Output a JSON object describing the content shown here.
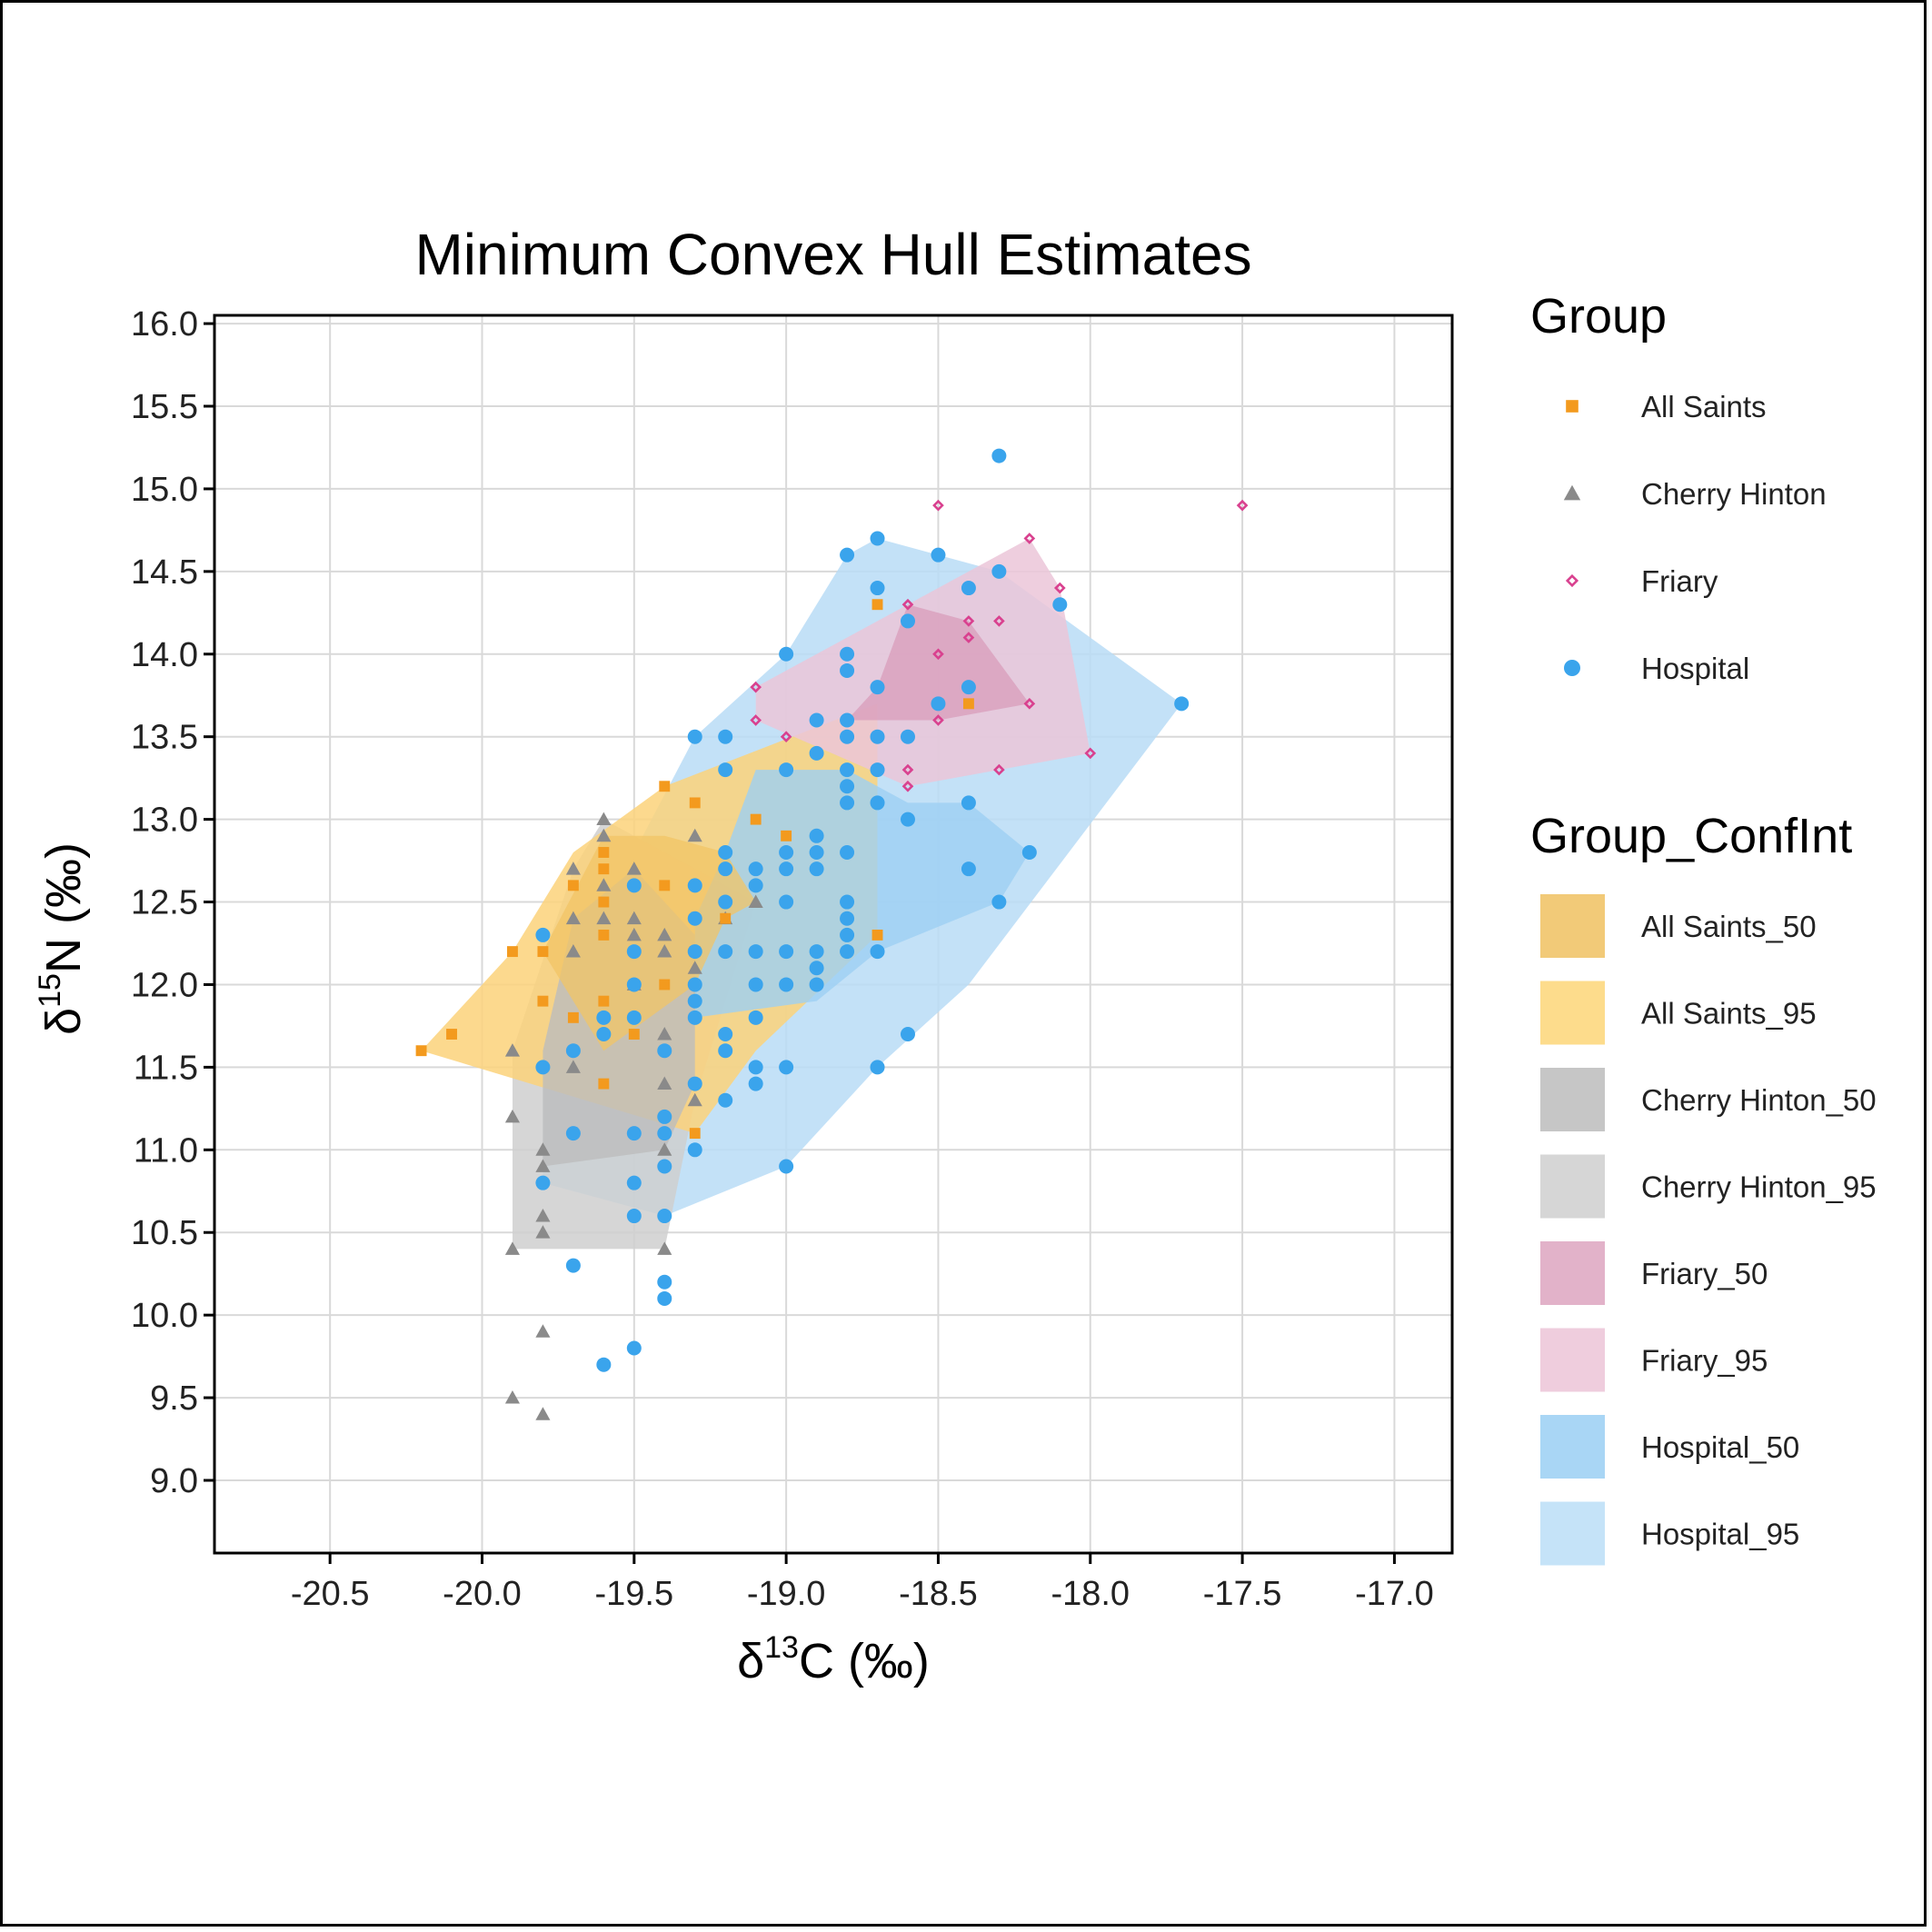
{
  "chart_data": {
    "type": "scatter",
    "title": "Minimum Convex Hull Estimates",
    "xlabel": {
      "prefix": "δ",
      "sup": "13",
      "suffix": "C (‰)"
    },
    "ylabel": {
      "prefix": "δ",
      "sup": "15",
      "suffix": "N (‰)"
    },
    "xlim": [
      -20.88,
      -16.81
    ],
    "ylim": [
      8.56,
      16.05
    ],
    "xticks": [
      -20.5,
      -20.0,
      -19.5,
      -19.0,
      -18.5,
      -18.0,
      -17.5,
      -17.0
    ],
    "xtick_labels": [
      "-20.5",
      "-20.0",
      "-19.5",
      "-19.0",
      "-18.5",
      "-18.0",
      "-17.5",
      "-17.0"
    ],
    "yticks": [
      9.0,
      9.5,
      10.0,
      10.5,
      11.0,
      11.5,
      12.0,
      12.5,
      13.0,
      13.5,
      14.0,
      14.5,
      15.0,
      15.5,
      16.0
    ],
    "ytick_labels": [
      "9.0",
      "9.5",
      "10.0",
      "10.5",
      "11.0",
      "11.5",
      "12.0",
      "12.5",
      "13.0",
      "13.5",
      "14.0",
      "14.5",
      "15.0",
      "15.5",
      "16.0"
    ],
    "grid": true,
    "legend_position": "right",
    "hulls": [
      {
        "name": "Hospital_95",
        "color": "#b9dcf6",
        "opacity": 0.85,
        "points": [
          [
            -18.7,
            14.7
          ],
          [
            -18.3,
            14.5
          ],
          [
            -17.7,
            13.7
          ],
          [
            -18.4,
            12.0
          ],
          [
            -18.7,
            11.5
          ],
          [
            -19.0,
            10.9
          ],
          [
            -19.4,
            10.6
          ],
          [
            -19.8,
            10.8
          ],
          [
            -19.8,
            11.5
          ],
          [
            -19.7,
            12.1
          ],
          [
            -19.3,
            13.5
          ],
          [
            -19.0,
            14.0
          ],
          [
            -18.8,
            14.6
          ]
        ]
      },
      {
        "name": "Cherry Hinton_95",
        "color": "#cfcfcf",
        "opacity": 0.85,
        "points": [
          [
            -19.9,
            10.4
          ],
          [
            -19.4,
            10.4
          ],
          [
            -19.3,
            11.3
          ],
          [
            -19.1,
            12.5
          ],
          [
            -19.6,
            13.0
          ],
          [
            -19.7,
            12.7
          ],
          [
            -19.9,
            11.6
          ]
        ]
      },
      {
        "name": "All Saints_95",
        "color": "#fcd27a",
        "opacity": 0.85,
        "points": [
          [
            -20.2,
            11.6
          ],
          [
            -19.3,
            11.1
          ],
          [
            -19.1,
            11.6
          ],
          [
            -18.7,
            12.3
          ],
          [
            -18.7,
            13.7
          ],
          [
            -19.4,
            13.2
          ],
          [
            -19.7,
            12.8
          ],
          [
            -19.9,
            12.2
          ]
        ]
      },
      {
        "name": "Friary_95",
        "color": "#ebc6d8",
        "opacity": 0.85,
        "points": [
          [
            -18.2,
            14.7
          ],
          [
            -18.1,
            14.4
          ],
          [
            -18.0,
            13.4
          ],
          [
            -18.6,
            13.2
          ],
          [
            -19.1,
            13.6
          ],
          [
            -19.1,
            13.8
          ],
          [
            -18.6,
            14.3
          ]
        ]
      },
      {
        "name": "Hospital_50",
        "color": "#9ecff3",
        "opacity": 0.8,
        "points": [
          [
            -18.2,
            12.8
          ],
          [
            -18.3,
            12.5
          ],
          [
            -18.7,
            12.2
          ],
          [
            -18.9,
            11.9
          ],
          [
            -19.3,
            11.8
          ],
          [
            -19.3,
            12.4
          ],
          [
            -19.2,
            12.8
          ],
          [
            -19.1,
            13.3
          ],
          [
            -18.8,
            13.3
          ],
          [
            -18.6,
            13.1
          ],
          [
            -18.4,
            13.1
          ]
        ]
      },
      {
        "name": "Cherry Hinton_50",
        "color": "#bdbdbd",
        "opacity": 0.8,
        "points": [
          [
            -19.8,
            10.9
          ],
          [
            -19.4,
            11.0
          ],
          [
            -19.3,
            11.4
          ],
          [
            -19.3,
            12.3
          ],
          [
            -19.5,
            12.7
          ],
          [
            -19.7,
            12.4
          ],
          [
            -19.8,
            11.6
          ]
        ]
      },
      {
        "name": "All Saints_50",
        "color": "#f2c465",
        "opacity": 0.75,
        "points": [
          [
            -19.8,
            12.2
          ],
          [
            -19.6,
            11.6
          ],
          [
            -19.3,
            12.0
          ],
          [
            -19.2,
            12.4
          ],
          [
            -19.1,
            12.5
          ],
          [
            -19.2,
            12.8
          ],
          [
            -19.4,
            12.9
          ],
          [
            -19.6,
            12.9
          ]
        ]
      },
      {
        "name": "Friary_50",
        "color": "#d99fbd",
        "opacity": 0.8,
        "points": [
          [
            -18.6,
            14.3
          ],
          [
            -18.4,
            14.2
          ],
          [
            -18.2,
            13.7
          ],
          [
            -18.5,
            13.6
          ],
          [
            -18.8,
            13.6
          ],
          [
            -18.7,
            13.8
          ]
        ]
      }
    ],
    "series": [
      {
        "name": "Cherry Hinton",
        "color": "#8a8a8a",
        "marker": "triangle",
        "points": [
          [
            -19.6,
            13.0
          ],
          [
            -19.6,
            12.9
          ],
          [
            -19.7,
            12.7
          ],
          [
            -19.5,
            12.7
          ],
          [
            -19.6,
            12.6
          ],
          [
            -19.7,
            12.4
          ],
          [
            -19.6,
            12.4
          ],
          [
            -19.5,
            12.4
          ],
          [
            -19.4,
            12.3
          ],
          [
            -19.5,
            12.3
          ],
          [
            -19.7,
            12.2
          ],
          [
            -19.4,
            12.2
          ],
          [
            -19.3,
            12.1
          ],
          [
            -19.5,
            12.0
          ],
          [
            -19.4,
            11.7
          ],
          [
            -19.9,
            11.6
          ],
          [
            -19.7,
            11.5
          ],
          [
            -19.4,
            11.4
          ],
          [
            -19.3,
            11.3
          ],
          [
            -19.9,
            11.2
          ],
          [
            -19.8,
            11.0
          ],
          [
            -19.4,
            11.0
          ],
          [
            -19.8,
            10.9
          ],
          [
            -19.8,
            10.6
          ],
          [
            -19.8,
            10.5
          ],
          [
            -19.9,
            10.4
          ],
          [
            -19.4,
            10.4
          ],
          [
            -19.8,
            9.9
          ],
          [
            -19.9,
            9.5
          ],
          [
            -19.8,
            9.4
          ],
          [
            -19.3,
            12.9
          ],
          [
            -19.1,
            12.5
          ],
          [
            -19.2,
            12.4
          ]
        ]
      },
      {
        "name": "All Saints",
        "color": "#f39a1e",
        "marker": "square",
        "points": [
          [
            -20.2,
            11.6
          ],
          [
            -20.1,
            11.7
          ],
          [
            -19.9,
            12.2
          ],
          [
            -19.8,
            12.2
          ],
          [
            -19.8,
            11.9
          ],
          [
            -19.7,
            12.6
          ],
          [
            -19.7,
            11.8
          ],
          [
            -19.6,
            12.8
          ],
          [
            -19.6,
            12.7
          ],
          [
            -19.6,
            12.5
          ],
          [
            -19.6,
            12.3
          ],
          [
            -19.6,
            11.9
          ],
          [
            -19.6,
            11.4
          ],
          [
            -19.5,
            11.7
          ],
          [
            -19.4,
            13.2
          ],
          [
            -19.4,
            12.6
          ],
          [
            -19.4,
            12.0
          ],
          [
            -19.3,
            13.1
          ],
          [
            -19.3,
            12.2
          ],
          [
            -19.3,
            11.1
          ],
          [
            -19.2,
            12.4
          ],
          [
            -19.1,
            13.0
          ],
          [
            -19.0,
            12.9
          ],
          [
            -18.7,
            14.3
          ],
          [
            -18.7,
            12.3
          ],
          [
            -18.4,
            13.7
          ]
        ]
      },
      {
        "name": "Friary",
        "color": "#d9418f",
        "marker": "diamond",
        "points": [
          [
            -18.5,
            14.9
          ],
          [
            -17.5,
            14.9
          ],
          [
            -18.2,
            14.7
          ],
          [
            -18.1,
            14.4
          ],
          [
            -18.6,
            14.3
          ],
          [
            -18.4,
            14.2
          ],
          [
            -18.3,
            14.2
          ],
          [
            -18.4,
            14.1
          ],
          [
            -18.5,
            14.0
          ],
          [
            -19.1,
            13.8
          ],
          [
            -18.2,
            13.7
          ],
          [
            -19.1,
            13.6
          ],
          [
            -18.5,
            13.6
          ],
          [
            -19.0,
            13.5
          ],
          [
            -18.0,
            13.4
          ],
          [
            -18.6,
            13.3
          ],
          [
            -18.3,
            13.3
          ],
          [
            -18.6,
            13.2
          ]
        ]
      },
      {
        "name": "Hospital",
        "color": "#3aa4ec",
        "marker": "circle",
        "points": [
          [
            -18.3,
            15.2
          ],
          [
            -18.7,
            14.7
          ],
          [
            -18.8,
            14.6
          ],
          [
            -18.5,
            14.6
          ],
          [
            -18.3,
            14.5
          ],
          [
            -18.7,
            14.4
          ],
          [
            -18.4,
            14.4
          ],
          [
            -18.1,
            14.3
          ],
          [
            -18.6,
            14.2
          ],
          [
            -19.0,
            14.0
          ],
          [
            -18.8,
            14.0
          ],
          [
            -18.8,
            13.9
          ],
          [
            -18.7,
            13.8
          ],
          [
            -18.4,
            13.8
          ],
          [
            -18.5,
            13.7
          ],
          [
            -17.7,
            13.7
          ],
          [
            -18.9,
            13.6
          ],
          [
            -18.8,
            13.6
          ],
          [
            -19.3,
            13.5
          ],
          [
            -19.2,
            13.5
          ],
          [
            -18.8,
            13.5
          ],
          [
            -18.7,
            13.5
          ],
          [
            -18.6,
            13.5
          ],
          [
            -18.9,
            13.4
          ],
          [
            -19.2,
            13.3
          ],
          [
            -19.0,
            13.3
          ],
          [
            -18.8,
            13.3
          ],
          [
            -18.7,
            13.3
          ],
          [
            -18.8,
            13.2
          ],
          [
            -18.8,
            13.1
          ],
          [
            -18.7,
            13.1
          ],
          [
            -18.4,
            13.1
          ],
          [
            -18.6,
            13.0
          ],
          [
            -18.9,
            12.9
          ],
          [
            -19.2,
            12.8
          ],
          [
            -19.0,
            12.8
          ],
          [
            -18.9,
            12.8
          ],
          [
            -18.8,
            12.8
          ],
          [
            -18.2,
            12.8
          ],
          [
            -19.2,
            12.7
          ],
          [
            -19.1,
            12.7
          ],
          [
            -19.0,
            12.7
          ],
          [
            -18.9,
            12.7
          ],
          [
            -18.4,
            12.7
          ],
          [
            -19.5,
            12.6
          ],
          [
            -19.3,
            12.6
          ],
          [
            -19.1,
            12.6
          ],
          [
            -19.2,
            12.5
          ],
          [
            -19.0,
            12.5
          ],
          [
            -18.8,
            12.5
          ],
          [
            -18.3,
            12.5
          ],
          [
            -19.3,
            12.4
          ],
          [
            -18.8,
            12.4
          ],
          [
            -19.8,
            12.3
          ],
          [
            -18.8,
            12.3
          ],
          [
            -19.5,
            12.2
          ],
          [
            -19.3,
            12.2
          ],
          [
            -19.2,
            12.2
          ],
          [
            -19.1,
            12.2
          ],
          [
            -19.0,
            12.2
          ],
          [
            -18.9,
            12.2
          ],
          [
            -18.8,
            12.2
          ],
          [
            -18.7,
            12.2
          ],
          [
            -18.9,
            12.1
          ],
          [
            -19.5,
            12.0
          ],
          [
            -19.3,
            12.0
          ],
          [
            -19.1,
            12.0
          ],
          [
            -19.0,
            12.0
          ],
          [
            -18.9,
            12.0
          ],
          [
            -19.3,
            11.9
          ],
          [
            -19.6,
            11.8
          ],
          [
            -19.5,
            11.8
          ],
          [
            -19.3,
            11.8
          ],
          [
            -19.1,
            11.8
          ],
          [
            -19.6,
            11.7
          ],
          [
            -19.2,
            11.7
          ],
          [
            -18.6,
            11.7
          ],
          [
            -19.7,
            11.6
          ],
          [
            -19.4,
            11.6
          ],
          [
            -19.2,
            11.6
          ],
          [
            -19.8,
            11.5
          ],
          [
            -19.1,
            11.5
          ],
          [
            -19.0,
            11.5
          ],
          [
            -18.7,
            11.5
          ],
          [
            -19.3,
            11.4
          ],
          [
            -19.1,
            11.4
          ],
          [
            -19.2,
            11.3
          ],
          [
            -19.4,
            11.2
          ],
          [
            -19.7,
            11.1
          ],
          [
            -19.5,
            11.1
          ],
          [
            -19.4,
            11.1
          ],
          [
            -19.3,
            11.0
          ],
          [
            -19.4,
            10.9
          ],
          [
            -19.0,
            10.9
          ],
          [
            -19.8,
            10.8
          ],
          [
            -19.5,
            10.8
          ],
          [
            -19.5,
            10.6
          ],
          [
            -19.4,
            10.6
          ],
          [
            -19.7,
            10.3
          ],
          [
            -19.4,
            10.2
          ],
          [
            -19.4,
            10.1
          ],
          [
            -19.5,
            9.8
          ],
          [
            -19.6,
            9.7
          ]
        ]
      }
    ]
  },
  "legend": {
    "group_title": "Group",
    "group_items": [
      {
        "label": "All Saints",
        "color": "#f39a1e",
        "marker": "square"
      },
      {
        "label": "Cherry Hinton",
        "color": "#8a8a8a",
        "marker": "triangle"
      },
      {
        "label": "Friary",
        "color": "#d9418f",
        "marker": "diamond"
      },
      {
        "label": "Hospital",
        "color": "#3aa4ec",
        "marker": "circle"
      }
    ],
    "confint_title": "Group_ConfInt",
    "confint_items": [
      {
        "label": "All Saints_50",
        "color": "#f2ca78"
      },
      {
        "label": "All Saints_95",
        "color": "#fddc8c"
      },
      {
        "label": "Cherry Hinton_50",
        "color": "#c6c6c6"
      },
      {
        "label": "Cherry Hinton_95",
        "color": "#d6d6d6"
      },
      {
        "label": "Friary_50",
        "color": "#e2b2c9"
      },
      {
        "label": "Friary_95",
        "color": "#efcddd"
      },
      {
        "label": "Hospital_50",
        "color": "#a9d6f5"
      },
      {
        "label": "Hospital_95",
        "color": "#c5e3f8"
      }
    ]
  }
}
